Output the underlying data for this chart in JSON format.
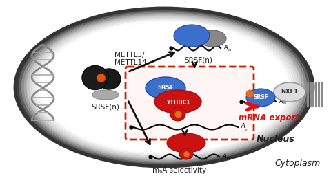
{
  "bg_color": "#ffffff",
  "outer_rect_color": "#cccccc",
  "cell_outer_ec": "#555555",
  "cell_inner_gradient": "#ffffff",
  "dna_color": "#999999",
  "mettl_body_color": "#1a1a1a",
  "mettl_orange": "#e85010",
  "srsf_blue": "#3a6fcc",
  "srsf_gray": "#888888",
  "ythdc_red": "#cc1111",
  "ythdc_orange": "#e07020",
  "nxf1_gray": "#cccccc",
  "red_arrow_color": "#dd1111",
  "black_arrow_color": "#111111",
  "text_color": "#222222",
  "box_bg": "#fff0f0",
  "box_ec": "#cc2200",
  "nucleus_label": "Nucleus",
  "cytoplasm_label": "Cytoplasm",
  "mettl_label1": "METTL3/",
  "mettl_label2": "METTL14",
  "srsf_left_label": "SRSF(n)",
  "srsf_top_label": "SRSF(n)",
  "srsf_right_label": "SRSF",
  "ythdc_label": "YTHDC1",
  "nxf1_label": "NXF1",
  "mrna_export_label": "mRNA export",
  "m6a_label": "m₆A selectivity",
  "an_label": "A",
  "figw": 4.8,
  "figh": 2.59,
  "dpi": 100
}
